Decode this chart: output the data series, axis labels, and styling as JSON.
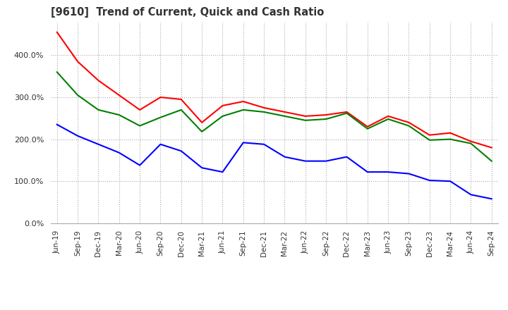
{
  "title": "[9610]  Trend of Current, Quick and Cash Ratio",
  "x_labels": [
    "Jun-19",
    "Sep-19",
    "Dec-19",
    "Mar-20",
    "Jun-20",
    "Sep-20",
    "Dec-20",
    "Mar-21",
    "Jun-21",
    "Sep-21",
    "Dec-21",
    "Mar-22",
    "Jun-22",
    "Sep-22",
    "Dec-22",
    "Mar-23",
    "Jun-23",
    "Sep-23",
    "Dec-23",
    "Mar-24",
    "Jun-24",
    "Sep-24"
  ],
  "current_ratio": [
    455,
    385,
    340,
    305,
    270,
    300,
    295,
    240,
    280,
    290,
    275,
    265,
    255,
    258,
    265,
    230,
    255,
    240,
    210,
    215,
    195,
    180
  ],
  "quick_ratio": [
    360,
    305,
    270,
    258,
    232,
    252,
    270,
    218,
    255,
    270,
    265,
    255,
    245,
    248,
    262,
    225,
    248,
    232,
    198,
    200,
    190,
    148
  ],
  "cash_ratio": [
    235,
    208,
    188,
    168,
    138,
    188,
    172,
    132,
    122,
    192,
    188,
    158,
    148,
    148,
    158,
    122,
    122,
    118,
    102,
    100,
    68,
    58
  ],
  "current_color": "#ff0000",
  "quick_color": "#008000",
  "cash_color": "#0000ff",
  "ylim_min": 0,
  "ylim_max": 480,
  "y_ticks": [
    0,
    100,
    200,
    300,
    400
  ],
  "background_color": "#ffffff",
  "grid_color": "#aaaaaa"
}
